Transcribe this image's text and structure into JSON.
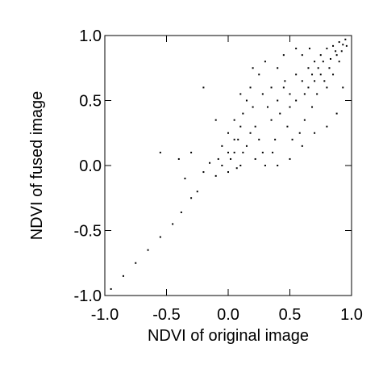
{
  "chart_data": {
    "type": "scatter",
    "x_label": "NDVI of original image",
    "y_label": "NDVI of fused image",
    "xlim": [
      -1.0,
      1.0
    ],
    "ylim": [
      -1.0,
      1.0
    ],
    "xticks": [
      {
        "value": -1.0,
        "label": "-1.0"
      },
      {
        "value": -0.5,
        "label": "-0.5"
      },
      {
        "value": 0.0,
        "label": "0.0"
      },
      0.5,
      {
        "value": 1.0,
        "label": "1.0"
      }
    ],
    "yticks": [
      {
        "value": -1.0,
        "label": "-1.0"
      },
      {
        "value": -0.5,
        "label": "-0.5"
      },
      {
        "value": 0.0,
        "label": "0.0"
      },
      0.5,
      {
        "value": 1.0,
        "label": "1.0"
      }
    ],
    "color": "#000000",
    "x": [
      -0.95,
      -0.85,
      -0.75,
      -0.65,
      -0.55,
      -0.45,
      -0.38,
      -0.3,
      -0.25,
      -0.35,
      -0.4,
      -0.55,
      -0.3,
      -0.2,
      -0.15,
      -0.1,
      -0.05,
      0.0,
      0.02,
      0.05,
      0.08,
      0.1,
      0.12,
      0.15,
      0.18,
      0.2,
      0.22,
      0.25,
      0.28,
      0.3,
      0.15,
      0.0,
      0.05,
      -0.05,
      0.1,
      0.35,
      0.4,
      0.45,
      0.5,
      0.55,
      0.6,
      0.65,
      0.7,
      0.75,
      0.8,
      0.85,
      0.9,
      0.95,
      0.88,
      0.82,
      0.78,
      0.72,
      0.68,
      0.62,
      0.58,
      0.52,
      0.48,
      0.42,
      0.38,
      0.32,
      0.28,
      0.25,
      0.3,
      0.4,
      0.45,
      0.55,
      0.6,
      0.65,
      0.7,
      0.75,
      0.8,
      0.85,
      0.9,
      0.92,
      0.93,
      0.88,
      0.8,
      0.7,
      0.6,
      0.5,
      0.4,
      0.35,
      0.2,
      0.1,
      -0.1,
      -0.2,
      0.05,
      0.12,
      0.18,
      0.0,
      -0.08,
      0.07,
      0.22,
      0.5,
      0.55,
      0.62,
      0.68,
      0.73,
      0.77,
      0.83,
      0.87,
      0.93,
      0.96,
      0.46,
      0.36,
      0.66
    ],
    "y": [
      -0.95,
      -0.85,
      -0.75,
      -0.65,
      -0.55,
      -0.45,
      -0.36,
      -0.25,
      -0.2,
      -0.1,
      0.05,
      0.1,
      0.1,
      -0.05,
      0.02,
      -0.08,
      0.0,
      -0.05,
      0.05,
      0.1,
      0.2,
      0.3,
      0.4,
      0.5,
      0.6,
      0.45,
      0.3,
      0.2,
      0.1,
      0.0,
      0.15,
      0.25,
      0.35,
      0.15,
      0.0,
      0.35,
      0.5,
      0.6,
      0.55,
      0.7,
      0.65,
      0.75,
      0.8,
      0.85,
      0.9,
      0.92,
      0.95,
      0.97,
      0.85,
      0.75,
      0.65,
      0.55,
      0.45,
      0.35,
      0.25,
      0.2,
      0.3,
      0.4,
      0.2,
      0.45,
      0.55,
      0.7,
      0.8,
      0.75,
      0.85,
      0.9,
      0.85,
      0.6,
      0.65,
      0.7,
      0.6,
      0.7,
      0.8,
      0.88,
      0.6,
      0.4,
      0.3,
      0.25,
      0.15,
      0.05,
      0.0,
      0.6,
      0.75,
      0.55,
      0.35,
      0.6,
      0.2,
      0.1,
      0.25,
      0.1,
      0.05,
      -0.02,
      0.05,
      0.45,
      0.5,
      0.55,
      0.7,
      0.75,
      0.8,
      0.82,
      0.88,
      0.93,
      0.92,
      0.65,
      0.1,
      0.9
    ]
  }
}
